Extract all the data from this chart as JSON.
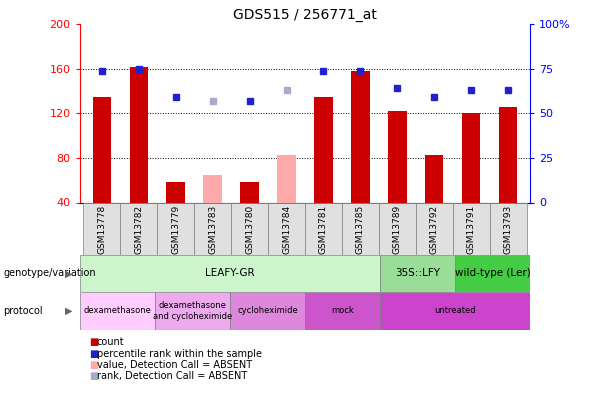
{
  "title": "GDS515 / 256771_at",
  "samples": [
    "GSM13778",
    "GSM13782",
    "GSM13779",
    "GSM13783",
    "GSM13780",
    "GSM13784",
    "GSM13781",
    "GSM13785",
    "GSM13789",
    "GSM13792",
    "GSM13791",
    "GSM13793"
  ],
  "count_values": [
    135,
    162,
    58,
    null,
    58,
    null,
    135,
    158,
    122,
    83,
    120,
    126
  ],
  "count_absent": [
    null,
    null,
    null,
    65,
    null,
    83,
    null,
    null,
    null,
    null,
    null,
    null
  ],
  "rank_values": [
    74,
    75,
    59,
    null,
    57,
    null,
    74,
    74,
    64,
    59,
    63,
    63
  ],
  "rank_absent": [
    null,
    null,
    null,
    57,
    null,
    63,
    null,
    null,
    null,
    null,
    null,
    null
  ],
  "ylim_left": [
    40,
    200
  ],
  "ylim_right": [
    0,
    100
  ],
  "yticks_left": [
    40,
    80,
    120,
    160,
    200
  ],
  "yticks_right": [
    0,
    25,
    50,
    75,
    100
  ],
  "ytick_labels_right": [
    "0",
    "25",
    "50",
    "75",
    "100%"
  ],
  "genotype_groups": [
    {
      "label": "LEAFY-GR",
      "start": 0,
      "end": 8,
      "color": "#ccf5cc"
    },
    {
      "label": "35S::LFY",
      "start": 8,
      "end": 10,
      "color": "#99dd99"
    },
    {
      "label": "wild-type (Ler)",
      "start": 10,
      "end": 12,
      "color": "#44cc44"
    }
  ],
  "protocol_groups": [
    {
      "label": "dexamethasone",
      "start": 0,
      "end": 2,
      "color": "#ffccff"
    },
    {
      "label": "dexamethasone\nand cycloheximide",
      "start": 2,
      "end": 4,
      "color": "#eeaaee"
    },
    {
      "label": "cycloheximide",
      "start": 4,
      "end": 6,
      "color": "#dd88dd"
    },
    {
      "label": "mock",
      "start": 6,
      "end": 8,
      "color": "#cc55cc"
    },
    {
      "label": "untreated",
      "start": 8,
      "end": 12,
      "color": "#cc44cc"
    }
  ],
  "bar_color_normal": "#cc0000",
  "bar_color_absent": "#ffaaaa",
  "rank_color_normal": "#2222cc",
  "rank_color_absent": "#aaaacc",
  "bar_width": 0.5,
  "legend_items": [
    {
      "label": "count",
      "color": "#cc0000",
      "marker": "s"
    },
    {
      "label": "percentile rank within the sample",
      "color": "#2222cc",
      "marker": "s"
    },
    {
      "label": "value, Detection Call = ABSENT",
      "color": "#ffaaaa",
      "marker": "s"
    },
    {
      "label": "rank, Detection Call = ABSENT",
      "color": "#aaaacc",
      "marker": "s"
    }
  ]
}
